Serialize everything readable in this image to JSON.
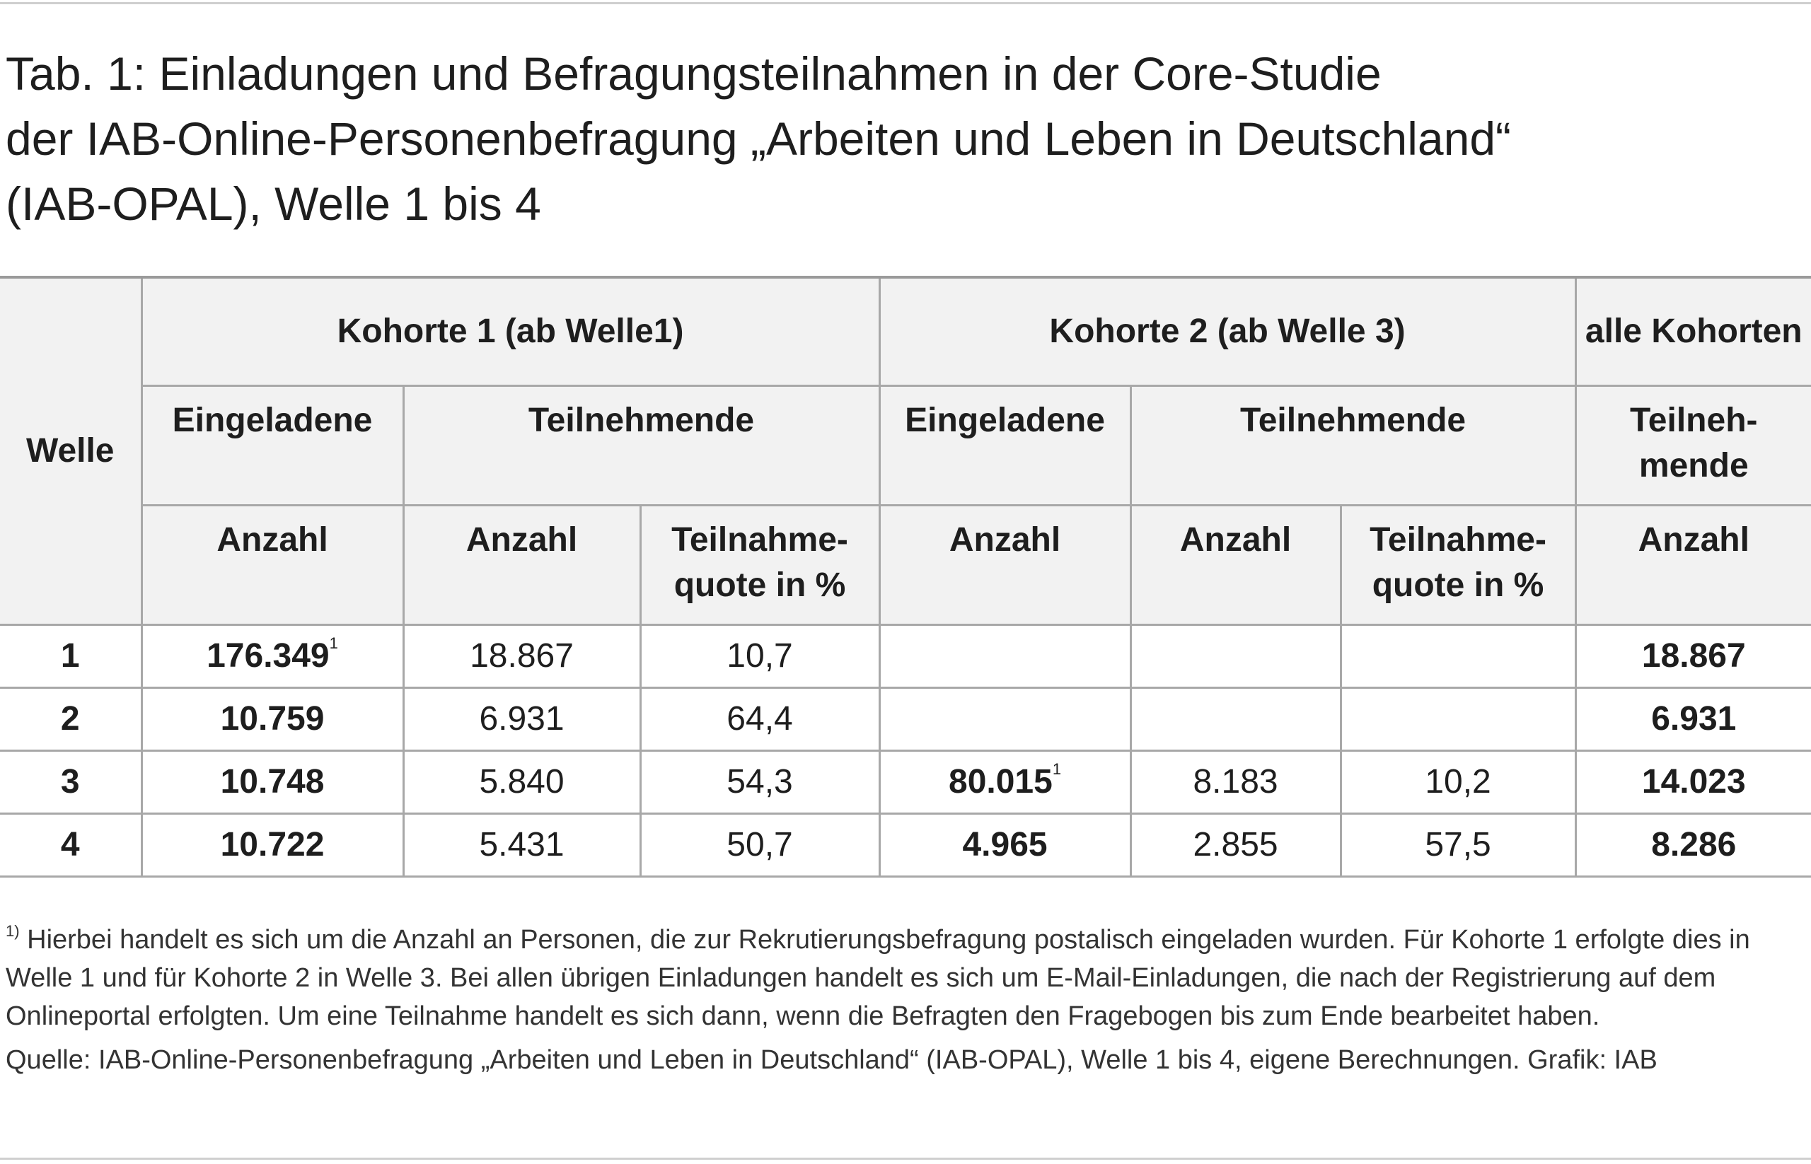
{
  "title": {
    "line1": "Tab. 1: Einladungen und Befragungsteilnahmen in der Core-Studie",
    "line2": "der IAB-Online-Personenbefragung „Arbeiten und Leben in Deutschland“",
    "line3": "(IAB-OPAL), Welle 1 bis 4"
  },
  "table": {
    "header": {
      "welle": "Welle",
      "kohorte1": "Kohorte 1 (ab Welle1)",
      "kohorte2": "Kohorte 2 (ab Welle 3)",
      "alle": "alle Kohorten",
      "eingeladene": "Eingeladene",
      "teilnehmende": "Teilnehmende",
      "teilnehmende_alle": "Teilneh-mende",
      "anzahl": "Anzahl",
      "quote": "Teilnahme-quote in %"
    },
    "rows": [
      {
        "welle": "1",
        "k1_eingeladen": "176.349",
        "k1_eingeladen_fn": "1",
        "k1_teilnehmende": "18.867",
        "k1_quote": "10,7",
        "k2_eingeladen": "",
        "k2_eingeladen_fn": "",
        "k2_teilnehmende": "",
        "k2_quote": "",
        "alle": "18.867"
      },
      {
        "welle": "2",
        "k1_eingeladen": "10.759",
        "k1_eingeladen_fn": "",
        "k1_teilnehmende": "6.931",
        "k1_quote": "64,4",
        "k2_eingeladen": "",
        "k2_eingeladen_fn": "",
        "k2_teilnehmende": "",
        "k2_quote": "",
        "alle": "6.931"
      },
      {
        "welle": "3",
        "k1_eingeladen": "10.748",
        "k1_eingeladen_fn": "",
        "k1_teilnehmende": "5.840",
        "k1_quote": "54,3",
        "k2_eingeladen": "80.015",
        "k2_eingeladen_fn": "1",
        "k2_teilnehmende": "8.183",
        "k2_quote": "10,2",
        "alle": "14.023"
      },
      {
        "welle": "4",
        "k1_eingeladen": "10.722",
        "k1_eingeladen_fn": "",
        "k1_teilnehmende": "5.431",
        "k1_quote": "50,7",
        "k2_eingeladen": "4.965",
        "k2_eingeladen_fn": "",
        "k2_teilnehmende": "2.855",
        "k2_quote": "57,5",
        "alle": "8.286"
      }
    ]
  },
  "notes": {
    "footnote_mark": "1)",
    "footnote_text": "Hierbei handelt es sich um die Anzahl an Personen, die zur Rekrutierungsbefragung postalisch eingeladen wurden. Für Kohorte 1 erfolgte dies in Welle 1 und für Kohorte 2 in Welle 3. Bei allen übrigen Einladungen handelt es sich um E-Mail-Einladungen, die nach der Registrierung auf dem Onlineportal erfolgten. Um eine Teilnahme handelt es sich dann, wenn die Befragten den Fragebogen bis zum Ende bearbeitet haben.",
    "source": "Quelle: IAB-Online-Personenbefragung „Arbeiten und Leben in Deutschland“ (IAB-OPAL), Welle 1 bis 4, eigene Berechnungen. Grafik: IAB"
  }
}
